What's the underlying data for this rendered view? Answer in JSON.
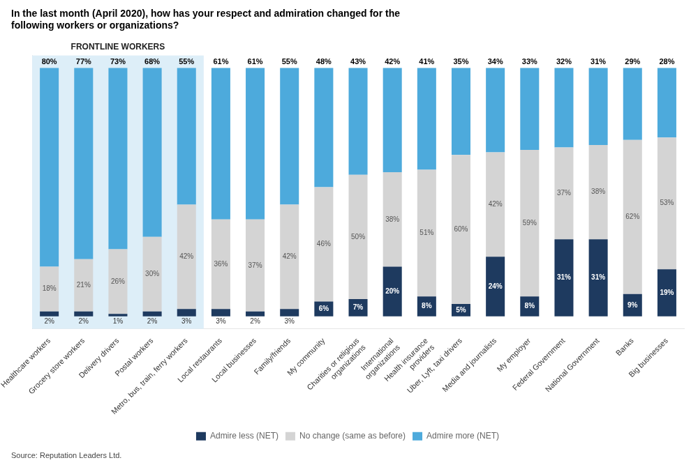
{
  "chart_data": {
    "type": "bar",
    "title": [
      "In the last month (April 2020), how has your respect and admiration changed for the",
      "following workers or organizations?"
    ],
    "source": "Source: Reputation Leaders Ltd.",
    "categories": [
      "Healthcare workers",
      "Grocery store workers",
      "Delivery drivers",
      "Postal workers",
      "Metro, bus, train, ferry workers",
      "Local restaurants",
      "Local businesses",
      "Family/friends",
      "My community",
      "Charities or religious\norganizations",
      "International\norganizations",
      "Health insurance\nproviders",
      "Uber, Lyft, taxi drivers",
      "Media and journalists",
      "My employer",
      "Federal Government",
      "National Government",
      "Banks",
      "Big businesses"
    ],
    "series": [
      {
        "name": "Admire less (NET)",
        "color": "#1e3a5f",
        "values": [
          2,
          2,
          1,
          2,
          3,
          3,
          2,
          3,
          6,
          7,
          20,
          8,
          5,
          24,
          8,
          31,
          31,
          9,
          19
        ],
        "value_labels": [
          "2%",
          "2%",
          "1%",
          "2%",
          "3%",
          "3%",
          "2%",
          "3%",
          "6%",
          "7%",
          "20%",
          "8%",
          "5%",
          "24%",
          "8%",
          "31%",
          "31%",
          "9%",
          "19%"
        ]
      },
      {
        "name": "No change (same as before)",
        "color": "#d4d4d4",
        "values": [
          18,
          21,
          26,
          30,
          42,
          36,
          37,
          42,
          46,
          50,
          38,
          51,
          60,
          42,
          59,
          37,
          38,
          62,
          53
        ],
        "value_labels": [
          "18%",
          "21%",
          "26%",
          "30%",
          "42%",
          "36%",
          "37%",
          "42%",
          "46%",
          "50%",
          "38%",
          "51%",
          "60%",
          "42%",
          "59%",
          "37%",
          "38%",
          "62%",
          "53%"
        ]
      },
      {
        "name": "Admire more (NET)",
        "color": "#4daadc",
        "values": [
          80,
          77,
          73,
          68,
          55,
          61,
          61,
          55,
          48,
          43,
          42,
          41,
          35,
          34,
          33,
          32,
          31,
          29,
          28
        ],
        "value_labels": [
          "80%",
          "77%",
          "73%",
          "68%",
          "55%",
          "61%",
          "61%",
          "55%",
          "48%",
          "43%",
          "42%",
          "41%",
          "35%",
          "34%",
          "33%",
          "32%",
          "31%",
          "29%",
          "28%"
        ]
      }
    ],
    "annotations": [
      {
        "text": "FRONTLINE WORKERS",
        "from": "Healthcare workers",
        "to": "Metro, bus, train, ferry workers",
        "color": "#ddeef8"
      }
    ],
    "ylim": [
      -5,
      105
    ],
    "yticks": [],
    "stacked": true,
    "data_labels": true,
    "grid": false,
    "legend": "bottom",
    "tick_labels": "x"
  }
}
